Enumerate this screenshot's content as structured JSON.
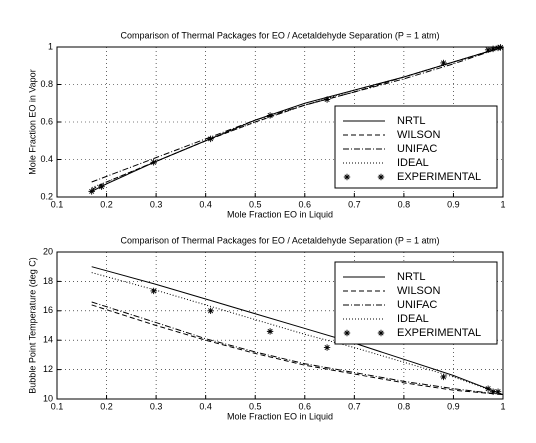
{
  "chart_data": [
    {
      "type": "line",
      "title": "Comparison of Thermal Packages for EO / Acetaldehyde Separation (P = 1 atm)",
      "xlabel": "Mole Fraction EO in Liquid",
      "ylabel": "Mole Fraction EO in Vapor",
      "xlim": [
        0.1,
        1
      ],
      "ylim": [
        0.2,
        1
      ],
      "xticks": [
        0.1,
        0.2,
        0.3,
        0.4,
        0.5,
        0.6,
        0.7,
        0.8,
        0.9,
        1
      ],
      "yticks": [
        0.2,
        0.4,
        0.6,
        0.8,
        1
      ],
      "grid": true,
      "legend": "lower right",
      "series": [
        {
          "name": "NRTL",
          "color": "#000000",
          "style": "solid",
          "x": [
            0.17,
            0.2,
            0.3,
            0.4,
            0.5,
            0.6,
            0.7,
            0.8,
            0.9,
            1
          ],
          "values": [
            0.23,
            0.27,
            0.39,
            0.5,
            0.61,
            0.7,
            0.77,
            0.84,
            0.92,
            1
          ]
        },
        {
          "name": "WILSON",
          "color": "#000000",
          "style": "dashed",
          "x": [
            0.17,
            0.2,
            0.3,
            0.4,
            0.5,
            0.6,
            0.7,
            0.8,
            0.9,
            1
          ],
          "values": [
            0.24,
            0.28,
            0.39,
            0.5,
            0.6,
            0.69,
            0.76,
            0.84,
            0.92,
            1
          ]
        },
        {
          "name": "UNIFAC",
          "color": "#000000",
          "style": "dashdot",
          "x": [
            0.17,
            0.2,
            0.3,
            0.4,
            0.5,
            0.6,
            0.7,
            0.8,
            0.9,
            1
          ],
          "values": [
            0.28,
            0.31,
            0.41,
            0.51,
            0.61,
            0.69,
            0.76,
            0.83,
            0.91,
            1
          ]
        },
        {
          "name": "IDEAL",
          "color": "#000000",
          "style": "dotted",
          "x": [
            0.17,
            0.2,
            0.3,
            0.4,
            0.5,
            0.6,
            0.7,
            0.8,
            0.9,
            1
          ],
          "values": [
            0.25,
            0.28,
            0.39,
            0.5,
            0.6,
            0.69,
            0.77,
            0.84,
            0.92,
            1
          ]
        },
        {
          "name": "EXPERIMENTAL",
          "color": "#000000",
          "style": "marker",
          "x": [
            0.17,
            0.19,
            0.295,
            0.41,
            0.53,
            0.645,
            0.88,
            0.97,
            0.98,
            0.99,
            0.995
          ],
          "values": [
            0.23,
            0.255,
            0.385,
            0.51,
            0.635,
            0.72,
            0.915,
            0.985,
            0.99,
            0.995,
            0.998
          ]
        }
      ]
    },
    {
      "type": "line",
      "title": "Comparison of Thermal Packages for EO / Acetaldehyde Separation (P = 1 atm)",
      "xlabel": "Mole Fraction EO in Liquid",
      "ylabel": "Bubble Point Temperature (deg C)",
      "xlim": [
        0.1,
        1
      ],
      "ylim": [
        10,
        20
      ],
      "xticks": [
        0.1,
        0.2,
        0.3,
        0.4,
        0.5,
        0.6,
        0.7,
        0.8,
        0.9,
        1
      ],
      "yticks": [
        10,
        12,
        14,
        16,
        18,
        20
      ],
      "grid": true,
      "legend": "upper right",
      "series": [
        {
          "name": "NRTL",
          "color": "#000000",
          "style": "solid",
          "x": [
            0.17,
            0.3,
            0.4,
            0.5,
            0.6,
            0.7,
            0.8,
            0.9,
            1
          ],
          "values": [
            19.0,
            17.8,
            16.8,
            15.8,
            14.8,
            13.8,
            12.7,
            11.6,
            10.3
          ]
        },
        {
          "name": "WILSON",
          "color": "#000000",
          "style": "dashed",
          "x": [
            0.17,
            0.3,
            0.4,
            0.5,
            0.6,
            0.7,
            0.8,
            0.9,
            1
          ],
          "values": [
            16.4,
            15.0,
            14.0,
            13.1,
            12.3,
            11.7,
            11.1,
            10.6,
            10.3
          ]
        },
        {
          "name": "UNIFAC",
          "color": "#000000",
          "style": "dashdot",
          "x": [
            0.17,
            0.3,
            0.4,
            0.5,
            0.6,
            0.7,
            0.8,
            0.9,
            1
          ],
          "values": [
            16.6,
            15.2,
            14.1,
            13.2,
            12.4,
            11.8,
            11.2,
            10.7,
            10.3
          ]
        },
        {
          "name": "IDEAL",
          "color": "#000000",
          "style": "dotted",
          "x": [
            0.17,
            0.3,
            0.4,
            0.5,
            0.6,
            0.7,
            0.8,
            0.9,
            1
          ],
          "values": [
            18.6,
            17.4,
            16.4,
            15.4,
            14.4,
            13.5,
            12.5,
            11.5,
            10.3
          ]
        },
        {
          "name": "EXPERIMENTAL",
          "color": "#000000",
          "style": "marker",
          "x": [
            0.295,
            0.41,
            0.53,
            0.645,
            0.88,
            0.97,
            0.98,
            0.99
          ],
          "values": [
            17.35,
            16.0,
            14.6,
            13.5,
            11.5,
            10.7,
            10.5,
            10.5
          ]
        }
      ]
    }
  ]
}
